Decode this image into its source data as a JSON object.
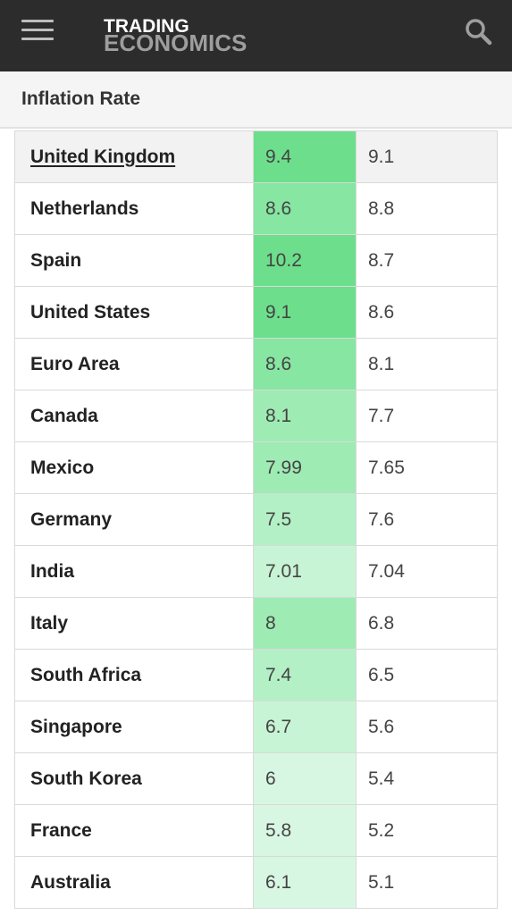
{
  "header": {
    "logo_line1": "TRADING",
    "logo_line2": "ECONOMICS",
    "menu_icon": "hamburger-menu-icon",
    "search_icon": "search-icon",
    "bar_color": "#2c2c2c"
  },
  "page": {
    "title": "Inflation Rate"
  },
  "table": {
    "rows": [
      {
        "country": "United Kingdom",
        "last": "9.4",
        "previous": "9.1",
        "color": "#6ddf8c",
        "linked": true
      },
      {
        "country": "Netherlands",
        "last": "8.6",
        "previous": "8.8",
        "color": "#86e6a2"
      },
      {
        "country": "Spain",
        "last": "10.2",
        "previous": "8.7",
        "color": "#6ddf8c"
      },
      {
        "country": "United States",
        "last": "9.1",
        "previous": "8.6",
        "color": "#6ddf8c"
      },
      {
        "country": "Euro Area",
        "last": "8.6",
        "previous": "8.1",
        "color": "#86e6a2"
      },
      {
        "country": "Canada",
        "last": "8.1",
        "previous": "7.7",
        "color": "#9eebb4"
      },
      {
        "country": "Mexico",
        "last": "7.99",
        "previous": "7.65",
        "color": "#9eebb4"
      },
      {
        "country": "Germany",
        "last": "7.5",
        "previous": "7.6",
        "color": "#b3f0c5"
      },
      {
        "country": "India",
        "last": "7.01",
        "previous": "7.04",
        "color": "#c8f4d6"
      },
      {
        "country": "Italy",
        "last": "8",
        "previous": "6.8",
        "color": "#9eebb4"
      },
      {
        "country": "South Africa",
        "last": "7.4",
        "previous": "6.5",
        "color": "#b3f0c5"
      },
      {
        "country": "Singapore",
        "last": "6.7",
        "previous": "5.6",
        "color": "#c8f4d6"
      },
      {
        "country": "South Korea",
        "last": "6",
        "previous": "5.4",
        "color": "#d8f7e2"
      },
      {
        "country": "France",
        "last": "5.8",
        "previous": "5.2",
        "color": "#d8f7e2"
      },
      {
        "country": "Australia",
        "last": "6.1",
        "previous": "5.1",
        "color": "#d8f7e2"
      }
    ]
  }
}
